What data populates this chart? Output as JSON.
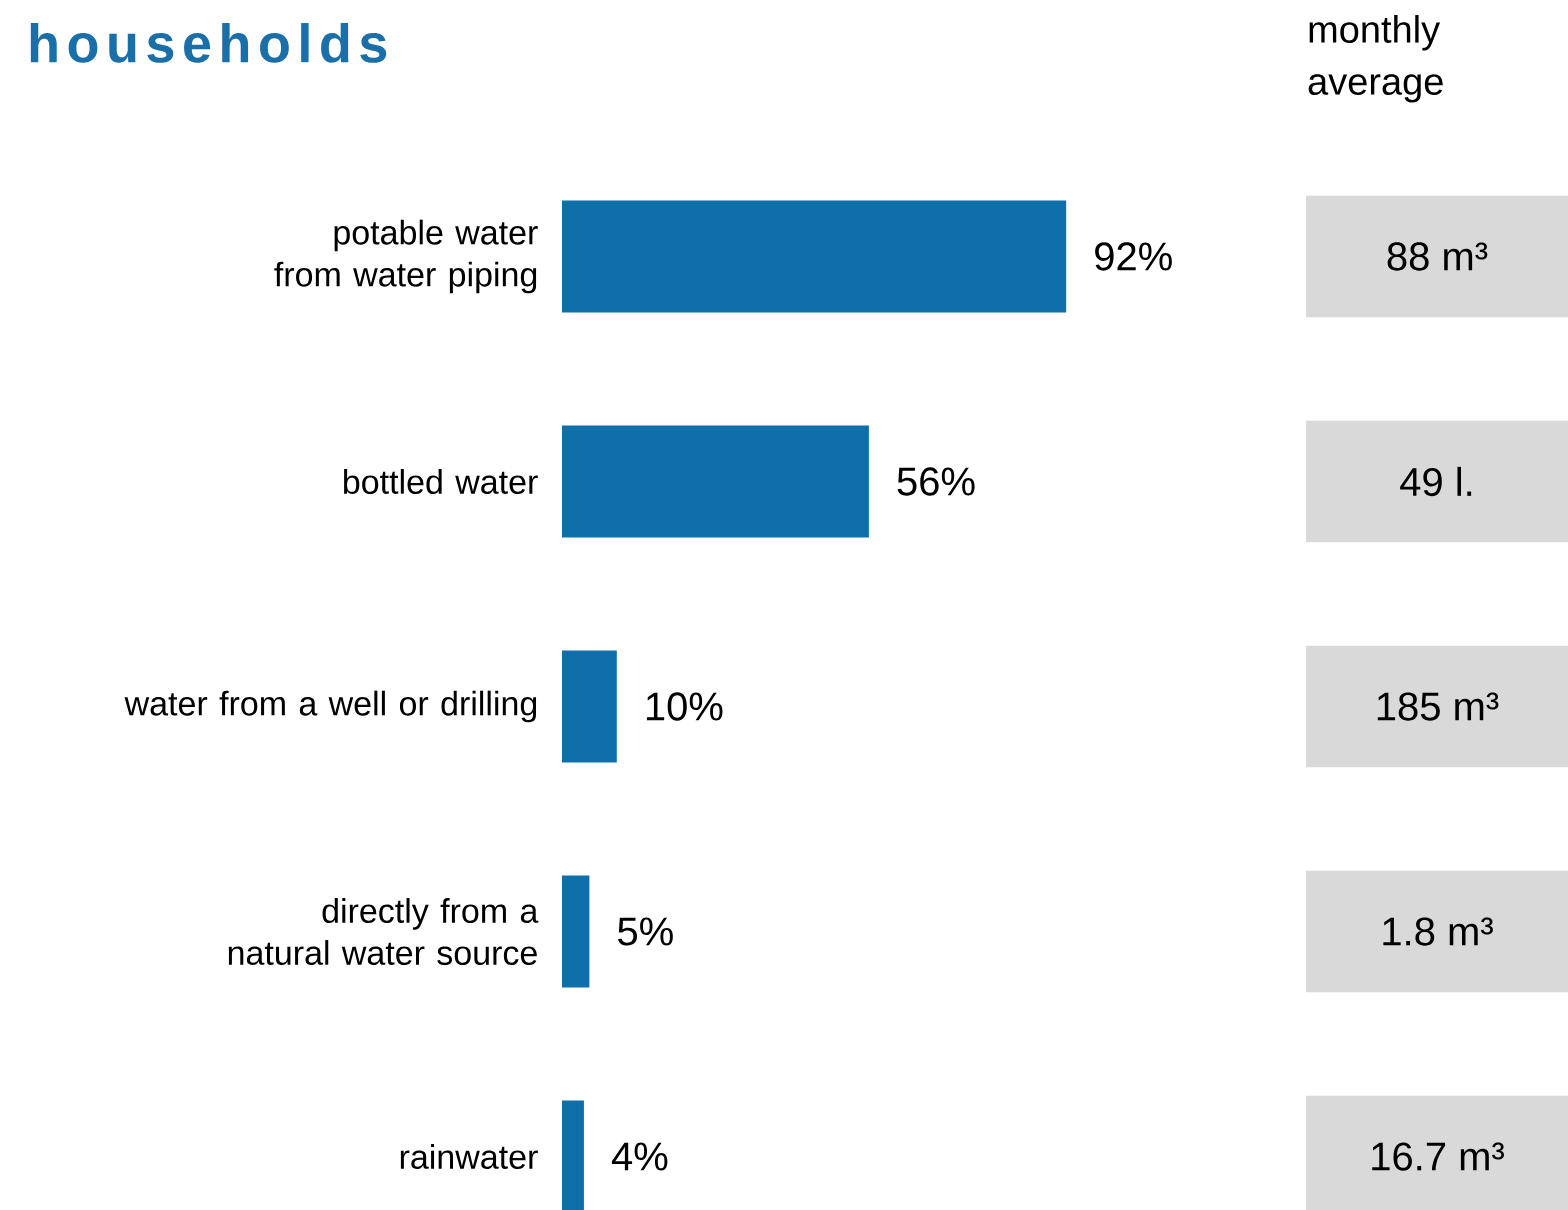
{
  "chart_data": [
    {
      "type": "bar",
      "orientation": "horizontal",
      "title": "households",
      "categories": [
        "potable water from water piping",
        "bottled water",
        "water from a well or drilling",
        "directly from a natural water source",
        "rainwater"
      ],
      "values": [
        92,
        56,
        10,
        5,
        4
      ],
      "value_labels": [
        "92%",
        "56%",
        "10%",
        "5%",
        "4%"
      ],
      "color": "#0e6fab"
    },
    {
      "type": "other",
      "title": "monthly average",
      "annotations": [
        "88 m³",
        "49 l.",
        "185 m³",
        "1.8 m³",
        "16.7 m³"
      ]
    }
  ]
}
